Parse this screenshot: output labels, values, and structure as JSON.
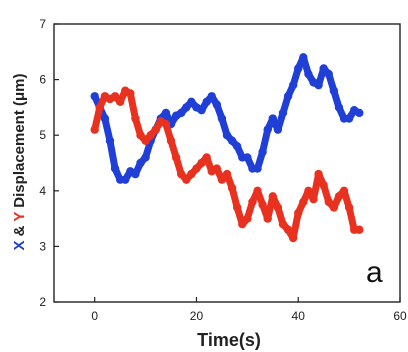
{
  "chart_data": {
    "type": "scatter",
    "xlabel": "Time(s)",
    "ylabel_parts": [
      {
        "text": "X",
        "color": "#1f3fd6"
      },
      {
        "text": " & ",
        "color": "#222222"
      },
      {
        "text": "Y",
        "color": "#e8311f"
      },
      {
        "text": " Displacement (μm)",
        "color": "#222222"
      }
    ],
    "panel_label": "a",
    "xlim": [
      -8,
      60
    ],
    "ylim": [
      2,
      7
    ],
    "x_ticks": [
      0,
      20,
      40,
      60
    ],
    "y_ticks": [
      2,
      3,
      4,
      5,
      6,
      7
    ],
    "x_tick_labels": [
      "0",
      "20",
      "40",
      "60"
    ],
    "y_tick_labels": [
      "2",
      "3",
      "4",
      "5",
      "6",
      "7"
    ],
    "series": [
      {
        "color": "#1f3fd6",
        "x": [
          0,
          1,
          2,
          3,
          4,
          5,
          6,
          7,
          8,
          9,
          10,
          11,
          12,
          13,
          14,
          15,
          16,
          17,
          18,
          19,
          20,
          21,
          22,
          23,
          24,
          25,
          26,
          27,
          28,
          29,
          30,
          31,
          32,
          33,
          34,
          35,
          36,
          37,
          38,
          39,
          40,
          41,
          42,
          43,
          44,
          45,
          46,
          47,
          48,
          49,
          50,
          51,
          52
        ],
        "y": [
          5.7,
          5.5,
          5.3,
          4.9,
          4.4,
          4.2,
          4.2,
          4.35,
          4.3,
          4.5,
          4.6,
          4.9,
          5.1,
          5.3,
          5.4,
          5.2,
          5.35,
          5.4,
          5.5,
          5.6,
          5.5,
          5.45,
          5.6,
          5.7,
          5.55,
          5.3,
          5.0,
          4.9,
          4.8,
          4.6,
          4.6,
          4.4,
          4.4,
          4.7,
          5.1,
          5.3,
          5.1,
          5.4,
          5.7,
          5.9,
          6.2,
          6.4,
          6.1,
          5.95,
          5.9,
          6.2,
          6.1,
          5.8,
          5.5,
          5.3,
          5.3,
          5.45,
          5.4
        ]
      },
      {
        "color": "#e8311f",
        "x": [
          0,
          1,
          2,
          3,
          4,
          5,
          6,
          7,
          8,
          9,
          10,
          11,
          12,
          13,
          14,
          15,
          16,
          17,
          18,
          19,
          20,
          21,
          22,
          23,
          24,
          25,
          26,
          27,
          28,
          29,
          30,
          31,
          32,
          33,
          34,
          35,
          36,
          37,
          38,
          39,
          40,
          41,
          42,
          43,
          44,
          45,
          46,
          47,
          48,
          49,
          50,
          51,
          52
        ],
        "y": [
          5.1,
          5.5,
          5.7,
          5.65,
          5.7,
          5.6,
          5.8,
          5.75,
          5.3,
          5.0,
          4.9,
          5.0,
          5.1,
          5.25,
          5.2,
          4.9,
          4.6,
          4.3,
          4.2,
          4.3,
          4.4,
          4.5,
          4.6,
          4.35,
          4.4,
          4.2,
          4.3,
          4.05,
          3.7,
          3.4,
          3.5,
          3.8,
          4.0,
          3.75,
          3.5,
          3.9,
          3.7,
          3.4,
          3.3,
          3.15,
          3.6,
          3.8,
          4.0,
          3.85,
          4.3,
          4.1,
          3.8,
          3.7,
          3.9,
          4.0,
          3.7,
          3.3,
          3.3
        ]
      }
    ]
  }
}
